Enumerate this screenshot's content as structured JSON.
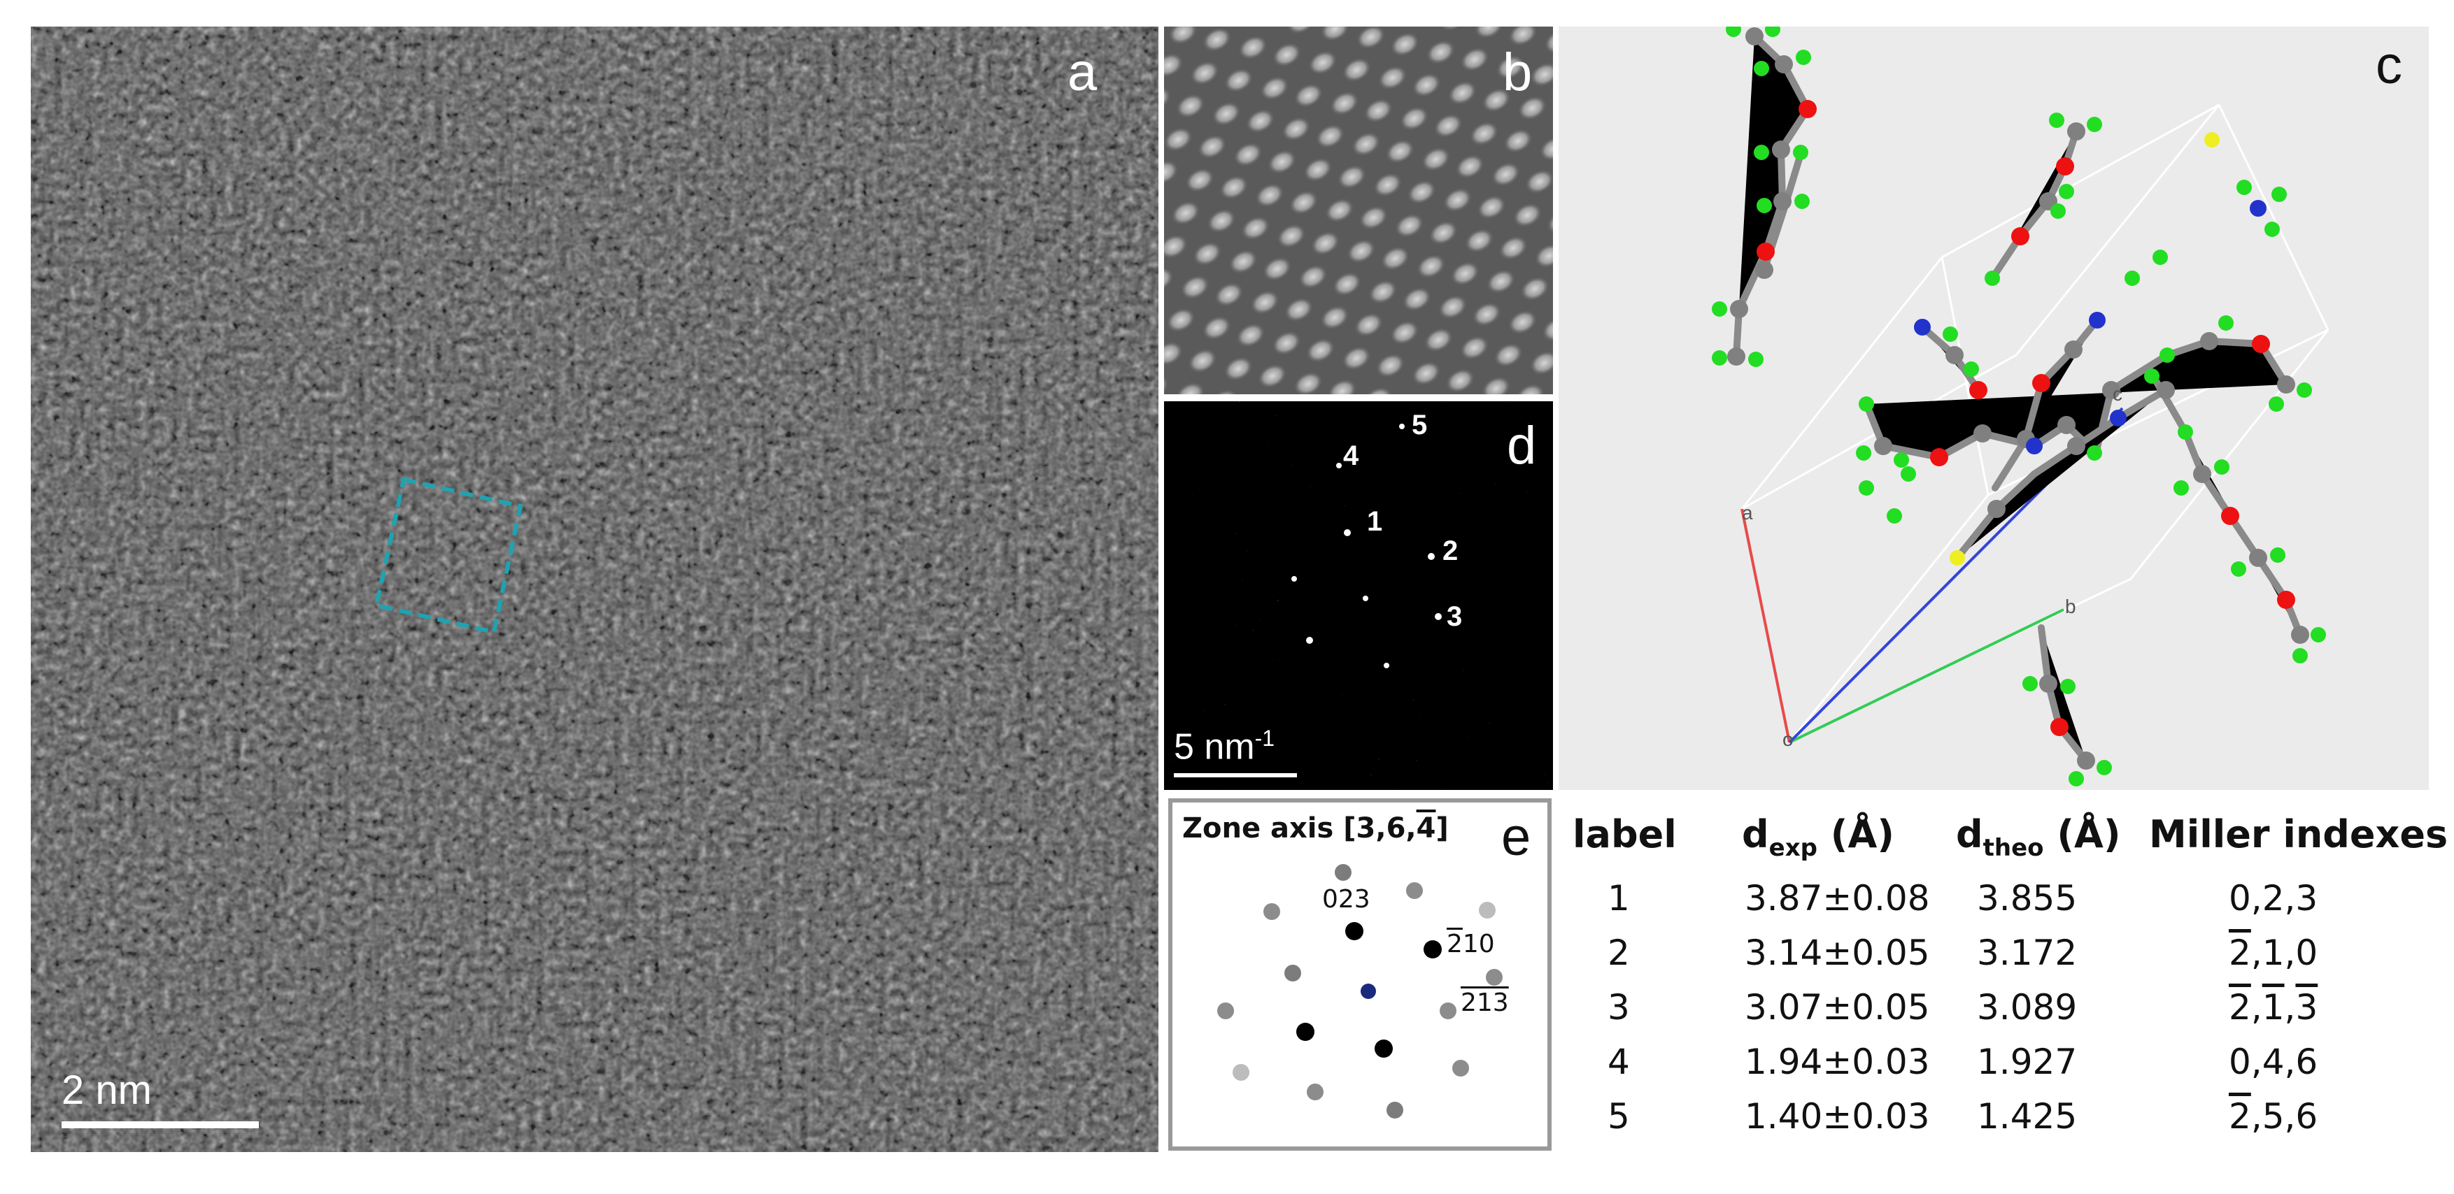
{
  "panels": {
    "a": {
      "label": "a",
      "scale_bar": "2 nm"
    },
    "b": {
      "label": "b"
    },
    "c": {
      "label": "c",
      "axes": [
        {
          "label": "a",
          "color": "#e84a4a"
        },
        {
          "label": "b",
          "color": "#33cc55"
        },
        {
          "label": "c",
          "color": "#3344dd"
        },
        {
          "label": "o",
          "color": "#555555"
        }
      ],
      "atom_colors": {
        "carbon": "#808080",
        "hydrogen": "#22dd22",
        "oxygen": "#ee1111",
        "nitrogen": "#2233cc",
        "sulfur": "#eeee22"
      }
    },
    "d": {
      "label": "d",
      "scale_bar": "5 nm",
      "scale_bar_sup": "-1",
      "spots": [
        "1",
        "2",
        "3",
        "4",
        "5"
      ]
    },
    "e": {
      "label": "e",
      "title": "Zone axis [3,6,",
      "title_bar_digit": "4",
      "title_end": "]",
      "spot_labels": {
        "s1": "023",
        "s2_bar": "2",
        "s2_rest": "10",
        "s3_bar": "213"
      }
    }
  },
  "table": {
    "headers": {
      "label": "label",
      "dexp": "d",
      "dexp_sub": "exp",
      "dexp_unit": " (Å)",
      "dtheo": "d",
      "dtheo_sub": "theo",
      "dtheo_unit": " (Å)",
      "miller": "Miller indexes"
    },
    "rows": [
      {
        "label": "1",
        "dexp": "3.87±0.08",
        "dtheo": "3.855"
      },
      {
        "label": "2",
        "dexp": "3.14±0.05",
        "dtheo": "3.172"
      },
      {
        "label": "3",
        "dexp": "3.07±0.05",
        "dtheo": "3.089"
      },
      {
        "label": "4",
        "dexp": "1.94±0.03",
        "dtheo": "1.927"
      },
      {
        "label": "5",
        "dexp": "1.40±0.03",
        "dtheo": "1.425"
      }
    ],
    "miller": {
      "r1": "0,2,3",
      "r2_bar": "2",
      "r2_rest": ",1,0",
      "r3_bar1": "2",
      "r3_sep1": ",",
      "r3_bar2": "1",
      "r3_sep2": ",",
      "r3_bar3": "3",
      "r4": "0,4,6",
      "r5_bar": "2",
      "r5_rest": ",5,6"
    }
  }
}
